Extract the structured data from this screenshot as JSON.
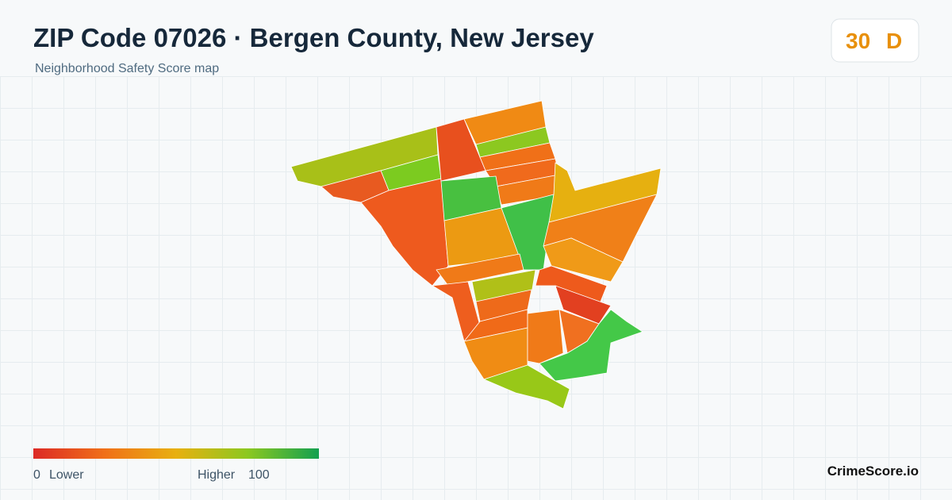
{
  "header": {
    "title": "ZIP Code 07026 · Bergen County, New Jersey",
    "subtitle": "Neighborhood Safety Score map"
  },
  "badge": {
    "score": 30,
    "grade": "D"
  },
  "legend": {
    "min": 0,
    "min_label": "Lower",
    "max_label": "Higher",
    "max": 100
  },
  "brand": "CrimeScore.io"
}
